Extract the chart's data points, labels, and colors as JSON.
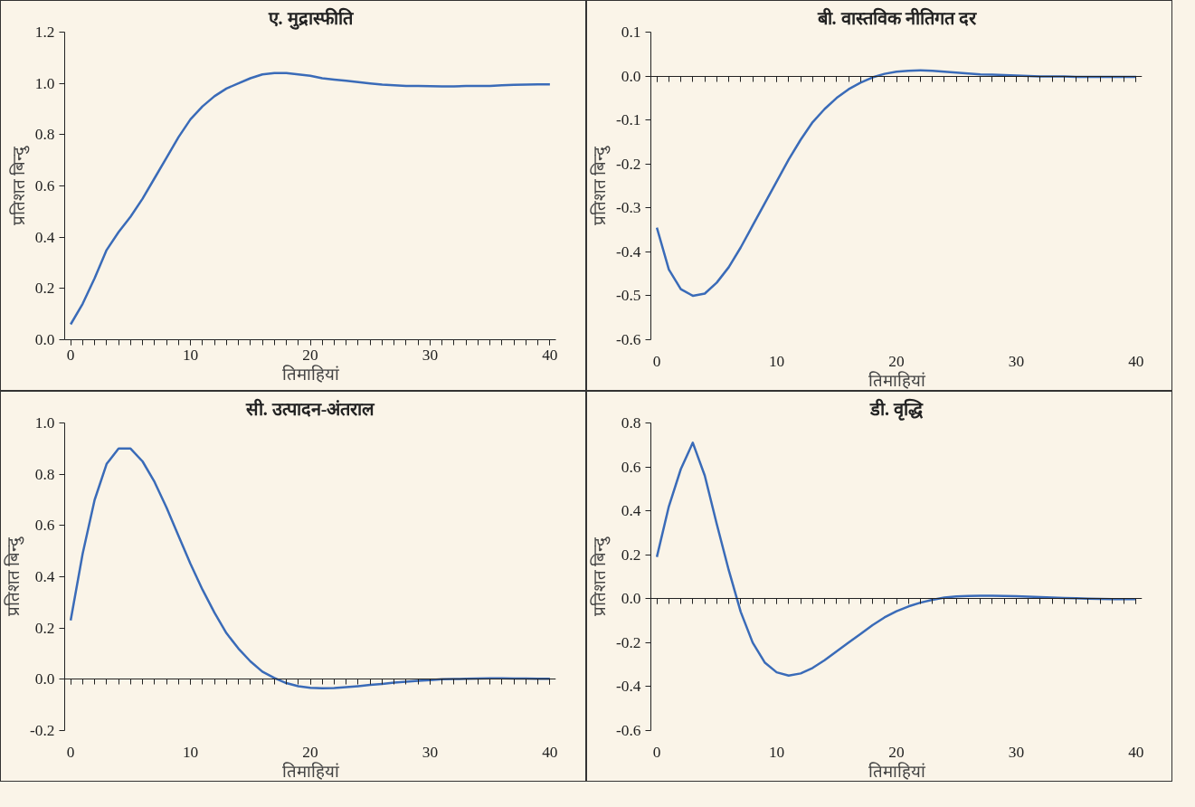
{
  "chart_data": [
    {
      "type": "line",
      "title": "ए. मुद्रास्फीति",
      "xlabel": "तिमाहियां",
      "ylabel": "प्रतिशत बिन्दु",
      "x": [
        0,
        1,
        2,
        3,
        4,
        5,
        6,
        7,
        8,
        9,
        10,
        11,
        12,
        13,
        14,
        15,
        16,
        17,
        18,
        19,
        20,
        21,
        22,
        23,
        24,
        25,
        26,
        27,
        28,
        29,
        30,
        31,
        32,
        33,
        34,
        35,
        36,
        37,
        38,
        39,
        40
      ],
      "series": [
        {
          "color": "#3a6bb8",
          "values": [
            0.06,
            0.14,
            0.24,
            0.35,
            0.42,
            0.48,
            0.55,
            0.63,
            0.71,
            0.79,
            0.86,
            0.91,
            0.95,
            0.98,
            1.0,
            1.02,
            1.035,
            1.04,
            1.04,
            1.035,
            1.03,
            1.02,
            1.015,
            1.01,
            1.005,
            1.0,
            0.995,
            0.993,
            0.99,
            0.99,
            0.989,
            0.988,
            0.988,
            0.99,
            0.99,
            0.99,
            0.993,
            0.994,
            0.995,
            0.996,
            0.996
          ]
        }
      ],
      "xlim": [
        -0.5,
        40.5
      ],
      "xticks": [
        0,
        10,
        20,
        30,
        40
      ],
      "ylim": [
        0,
        1.2
      ],
      "yticks": [
        {
          "value": 0,
          "label": "0.0"
        },
        0.2,
        0.4,
        0.6,
        0.8,
        {
          "value": 1,
          "label": "1.0"
        },
        1.2
      ]
    },
    {
      "type": "line",
      "title": "बी. वास्तविक नीतिगत दर",
      "xlabel": "तिमाहियां",
      "ylabel": "प्रतिशत बिन्दु",
      "x": [
        0,
        1,
        2,
        3,
        4,
        5,
        6,
        7,
        8,
        9,
        10,
        11,
        12,
        13,
        14,
        15,
        16,
        17,
        18,
        19,
        20,
        21,
        22,
        23,
        24,
        25,
        26,
        27,
        28,
        29,
        30,
        31,
        32,
        33,
        34,
        35,
        36,
        37,
        38,
        39,
        40
      ],
      "series": [
        {
          "color": "#3a6bb8",
          "values": [
            -0.345,
            -0.44,
            -0.485,
            -0.5,
            -0.495,
            -0.47,
            -0.435,
            -0.39,
            -0.34,
            -0.29,
            -0.24,
            -0.19,
            -0.145,
            -0.105,
            -0.075,
            -0.05,
            -0.03,
            -0.015,
            -0.003,
            0.005,
            0.01,
            0.012,
            0.013,
            0.012,
            0.01,
            0.008,
            0.006,
            0.004,
            0.003,
            0.002,
            0.001,
            0.0,
            -0.001,
            -0.001,
            -0.001,
            -0.002,
            -0.002,
            -0.002,
            -0.002,
            -0.002,
            -0.002
          ]
        }
      ],
      "xlim": [
        -0.5,
        40.5
      ],
      "xticks": [
        0,
        10,
        20,
        30,
        40
      ],
      "ylim": [
        -0.6,
        0.1
      ],
      "yticks": [
        {
          "value": -0.6,
          "label": "-0.6"
        },
        {
          "value": -0.5,
          "label": "-0.5"
        },
        {
          "value": -0.4,
          "label": "-0.4"
        },
        {
          "value": -0.3,
          "label": "-0.3"
        },
        {
          "value": -0.2,
          "label": "-0.2"
        },
        {
          "value": -0.1,
          "label": "-0.1"
        },
        {
          "value": 0,
          "label": "0.0"
        },
        0.1
      ]
    },
    {
      "type": "line",
      "title": "सी. उत्पादन-अंतराल",
      "xlabel": "तिमाहियां",
      "ylabel": "प्रतिशत बिन्दु",
      "x": [
        0,
        1,
        2,
        3,
        4,
        5,
        6,
        7,
        8,
        9,
        10,
        11,
        12,
        13,
        14,
        15,
        16,
        17,
        18,
        19,
        20,
        21,
        22,
        23,
        24,
        25,
        26,
        27,
        28,
        29,
        30,
        31,
        32,
        33,
        34,
        35,
        36,
        37,
        38,
        39,
        40
      ],
      "series": [
        {
          "color": "#3a6bb8",
          "values": [
            0.23,
            0.49,
            0.7,
            0.84,
            0.9,
            0.9,
            0.85,
            0.77,
            0.67,
            0.56,
            0.45,
            0.35,
            0.26,
            0.18,
            0.12,
            0.07,
            0.03,
            0.005,
            -0.015,
            -0.027,
            -0.033,
            -0.035,
            -0.034,
            -0.031,
            -0.027,
            -0.022,
            -0.018,
            -0.013,
            -0.009,
            -0.006,
            -0.003,
            0.0,
            0.001,
            0.002,
            0.003,
            0.004,
            0.004,
            0.003,
            0.003,
            0.002,
            0.002
          ]
        }
      ],
      "xlim": [
        -0.5,
        40.5
      ],
      "xticks": [
        0,
        10,
        20,
        30,
        40
      ],
      "ylim": [
        -0.2,
        1.0
      ],
      "yticks": [
        {
          "value": -0.2,
          "label": "-0.2"
        },
        {
          "value": 0,
          "label": "0.0"
        },
        0.2,
        0.4,
        0.6,
        0.8,
        {
          "value": 1,
          "label": "1.0"
        }
      ]
    },
    {
      "type": "line",
      "title": "डी. वृद्धि",
      "xlabel": "तिमाहियां",
      "ylabel": "प्रतिशत बिन्दु",
      "x": [
        0,
        1,
        2,
        3,
        4,
        5,
        6,
        7,
        8,
        9,
        10,
        11,
        12,
        13,
        14,
        15,
        16,
        17,
        18,
        19,
        20,
        21,
        22,
        23,
        24,
        25,
        26,
        27,
        28,
        29,
        30,
        31,
        32,
        33,
        34,
        35,
        36,
        37,
        38,
        39,
        40
      ],
      "series": [
        {
          "color": "#3a6bb8",
          "values": [
            0.19,
            0.42,
            0.59,
            0.71,
            0.56,
            0.34,
            0.13,
            -0.06,
            -0.2,
            -0.29,
            -0.335,
            -0.35,
            -0.34,
            -0.315,
            -0.28,
            -0.24,
            -0.2,
            -0.16,
            -0.12,
            -0.085,
            -0.057,
            -0.035,
            -0.018,
            -0.005,
            0.005,
            0.01,
            0.013,
            0.014,
            0.014,
            0.013,
            0.011,
            0.009,
            0.007,
            0.005,
            0.003,
            0.002,
            0.0,
            -0.001,
            -0.002,
            -0.002,
            -0.002
          ]
        }
      ],
      "xlim": [
        -0.5,
        40.5
      ],
      "xticks": [
        0,
        10,
        20,
        30,
        40
      ],
      "ylim": [
        -0.6,
        0.8
      ],
      "yticks": [
        {
          "value": -0.6,
          "label": "-0.6"
        },
        {
          "value": -0.4,
          "label": "-0.4"
        },
        {
          "value": -0.2,
          "label": "-0.2"
        },
        {
          "value": 0,
          "label": "0.0"
        },
        0.2,
        0.4,
        0.6,
        0.8
      ]
    }
  ]
}
